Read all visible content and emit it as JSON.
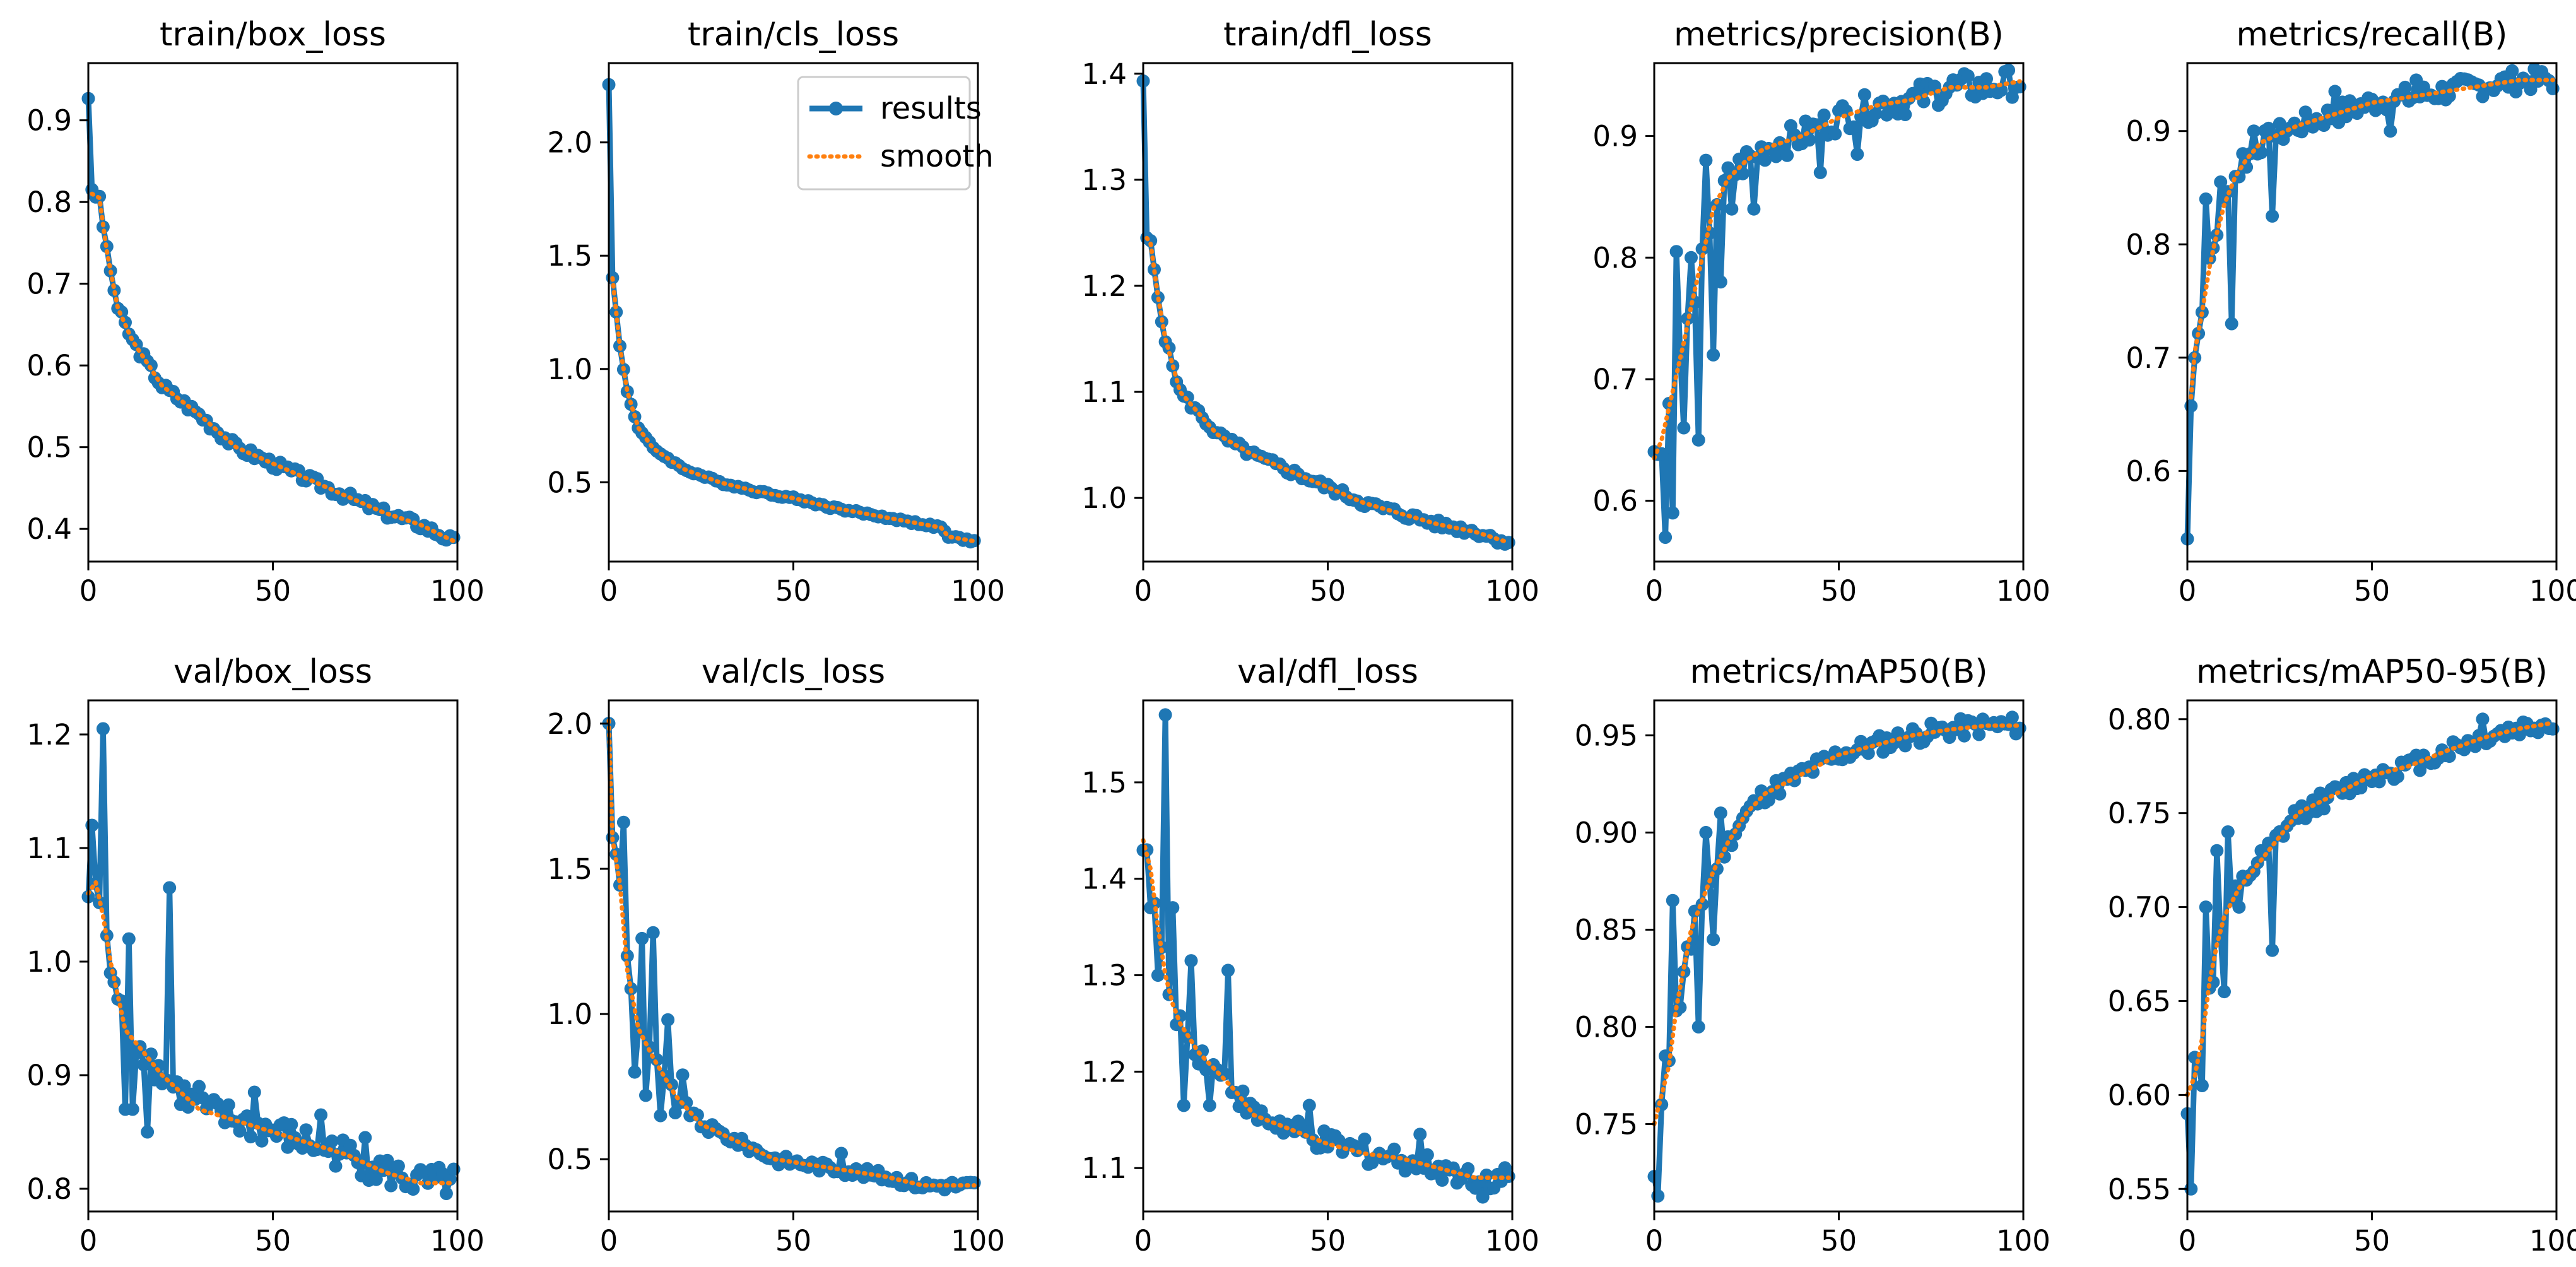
{
  "legend": {
    "results_label": "results",
    "smooth_label": "smooth"
  },
  "colors": {
    "results": "#1f77b4",
    "smooth": "#ff7f0e"
  },
  "chart_data": [
    {
      "type": "line",
      "title": "train/box_loss",
      "xlim": [
        0,
        100
      ],
      "ylim": [
        0.36,
        0.97
      ],
      "xticks": [
        "0",
        "50",
        "100"
      ],
      "yticks": [
        0.4,
        0.5,
        0.6,
        0.7,
        0.8,
        0.9
      ],
      "ytick_labels": [
        "0.4",
        "0.5",
        "0.6",
        "0.7",
        "0.8",
        "0.9"
      ],
      "n_points": 100,
      "anchors": [
        [
          0,
          0.93
        ],
        [
          1,
          0.81
        ],
        [
          3,
          0.805
        ],
        [
          5,
          0.74
        ],
        [
          8,
          0.67
        ],
        [
          12,
          0.63
        ],
        [
          20,
          0.575
        ],
        [
          30,
          0.54
        ],
        [
          40,
          0.5
        ],
        [
          50,
          0.48
        ],
        [
          60,
          0.46
        ],
        [
          70,
          0.44
        ],
        [
          80,
          0.42
        ],
        [
          90,
          0.405
        ],
        [
          99,
          0.385
        ]
      ],
      "noise": 0.006,
      "outliers": [],
      "smooth": "fit",
      "smooth_start": 1,
      "legend": false
    },
    {
      "type": "line",
      "title": "train/cls_loss",
      "xlim": [
        0,
        100
      ],
      "ylim": [
        0.15,
        2.35
      ],
      "xticks": [
        "0",
        "50",
        "100"
      ],
      "yticks": [
        0.5,
        1.0,
        1.5,
        2.0
      ],
      "ytick_labels": [
        "0.5",
        "1.0",
        "1.5",
        "2.0"
      ],
      "n_points": 100,
      "anchors": [
        [
          0,
          2.26
        ],
        [
          1,
          1.4
        ],
        [
          2,
          1.25
        ],
        [
          3,
          1.1
        ],
        [
          5,
          0.9
        ],
        [
          8,
          0.74
        ],
        [
          12,
          0.65
        ],
        [
          20,
          0.56
        ],
        [
          30,
          0.5
        ],
        [
          40,
          0.46
        ],
        [
          50,
          0.43
        ],
        [
          60,
          0.39
        ],
        [
          70,
          0.36
        ],
        [
          80,
          0.33
        ],
        [
          90,
          0.3
        ],
        [
          92,
          0.26
        ],
        [
          99,
          0.24
        ]
      ],
      "noise": 0.006,
      "outliers": [],
      "smooth": "fit",
      "smooth_start": 1,
      "legend": true
    },
    {
      "type": "line",
      "title": "train/dfl_loss",
      "xlim": [
        0,
        100
      ],
      "ylim": [
        0.94,
        1.41
      ],
      "xticks": [
        "0",
        "50",
        "100"
      ],
      "yticks": [
        1.0,
        1.1,
        1.2,
        1.3,
        1.4
      ],
      "ytick_labels": [
        "1.0",
        "1.1",
        "1.2",
        "1.3",
        "1.4"
      ],
      "n_points": 100,
      "anchors": [
        [
          0,
          1.39
        ],
        [
          1,
          1.245
        ],
        [
          2,
          1.24
        ],
        [
          4,
          1.19
        ],
        [
          6,
          1.15
        ],
        [
          10,
          1.1
        ],
        [
          15,
          1.08
        ],
        [
          20,
          1.06
        ],
        [
          30,
          1.04
        ],
        [
          40,
          1.025
        ],
        [
          50,
          1.01
        ],
        [
          60,
          0.995
        ],
        [
          70,
          0.985
        ],
        [
          80,
          0.975
        ],
        [
          90,
          0.968
        ],
        [
          99,
          0.958
        ]
      ],
      "noise": 0.004,
      "outliers": [],
      "smooth": "fit",
      "smooth_start": 1,
      "legend": false
    },
    {
      "type": "line",
      "title": "metrics/precision(B)",
      "xlim": [
        0,
        100
      ],
      "ylim": [
        0.55,
        0.96
      ],
      "xticks": [
        "0",
        "50",
        "100"
      ],
      "yticks": [
        0.6,
        0.7,
        0.8,
        0.9
      ],
      "ytick_labels": [
        "0.6",
        "0.7",
        "0.8",
        "0.9"
      ],
      "n_points": 100,
      "anchors": [
        [
          0,
          0.635
        ],
        [
          2,
          0.65
        ],
        [
          5,
          0.69
        ],
        [
          8,
          0.73
        ],
        [
          10,
          0.76
        ],
        [
          13,
          0.8
        ],
        [
          16,
          0.84
        ],
        [
          20,
          0.865
        ],
        [
          25,
          0.88
        ],
        [
          30,
          0.89
        ],
        [
          40,
          0.9
        ],
        [
          50,
          0.915
        ],
        [
          60,
          0.925
        ],
        [
          70,
          0.93
        ],
        [
          80,
          0.94
        ],
        [
          90,
          0.94
        ],
        [
          99,
          0.945
        ]
      ],
      "noise": 0.012,
      "outliers": [
        [
          3,
          0.57
        ],
        [
          4,
          0.68
        ],
        [
          5,
          0.59
        ],
        [
          6,
          0.805
        ],
        [
          8,
          0.66
        ],
        [
          10,
          0.8
        ],
        [
          12,
          0.65
        ],
        [
          14,
          0.88
        ],
        [
          16,
          0.72
        ],
        [
          18,
          0.78
        ],
        [
          21,
          0.84
        ],
        [
          27,
          0.84
        ],
        [
          45,
          0.87
        ],
        [
          55,
          0.885
        ]
      ],
      "smooth": "fit",
      "smooth_start": 0,
      "legend": false
    },
    {
      "type": "line",
      "title": "metrics/recall(B)",
      "xlim": [
        0,
        100
      ],
      "ylim": [
        0.52,
        0.96
      ],
      "xticks": [
        "0",
        "50",
        "100"
      ],
      "yticks": [
        0.6,
        0.7,
        0.8,
        0.9
      ],
      "ytick_labels": [
        "0.6",
        "0.7",
        "0.8",
        "0.9"
      ],
      "n_points": 100,
      "anchors": [
        [
          0,
          0.54
        ],
        [
          1,
          0.665
        ],
        [
          2,
          0.705
        ],
        [
          4,
          0.74
        ],
        [
          6,
          0.78
        ],
        [
          8,
          0.81
        ],
        [
          10,
          0.835
        ],
        [
          13,
          0.86
        ],
        [
          16,
          0.875
        ],
        [
          20,
          0.89
        ],
        [
          30,
          0.905
        ],
        [
          40,
          0.915
        ],
        [
          50,
          0.925
        ],
        [
          60,
          0.93
        ],
        [
          70,
          0.935
        ],
        [
          80,
          0.94
        ],
        [
          90,
          0.945
        ],
        [
          99,
          0.945
        ]
      ],
      "noise": 0.01,
      "outliers": [
        [
          0,
          0.54
        ],
        [
          5,
          0.84
        ],
        [
          9,
          0.855
        ],
        [
          12,
          0.73
        ],
        [
          15,
          0.88
        ],
        [
          18,
          0.9
        ],
        [
          23,
          0.825
        ],
        [
          27,
          0.9
        ],
        [
          40,
          0.935
        ],
        [
          55,
          0.9
        ],
        [
          62,
          0.945
        ]
      ],
      "smooth": "fit",
      "smooth_start": 1,
      "legend": false
    },
    {
      "type": "line",
      "title": "val/box_loss",
      "xlim": [
        0,
        100
      ],
      "ylim": [
        0.78,
        1.23
      ],
      "xticks": [
        "0",
        "50",
        "100"
      ],
      "yticks": [
        0.8,
        0.9,
        1.0,
        1.1,
        1.2
      ],
      "ytick_labels": [
        "0.8",
        "0.9",
        "1.0",
        "1.1",
        "1.2"
      ],
      "n_points": 100,
      "anchors": [
        [
          0,
          1.06
        ],
        [
          2,
          1.07
        ],
        [
          4,
          1.04
        ],
        [
          6,
          1.0
        ],
        [
          8,
          0.97
        ],
        [
          10,
          0.94
        ],
        [
          15,
          0.92
        ],
        [
          20,
          0.9
        ],
        [
          30,
          0.87
        ],
        [
          40,
          0.86
        ],
        [
          50,
          0.85
        ],
        [
          60,
          0.84
        ],
        [
          70,
          0.83
        ],
        [
          80,
          0.815
        ],
        [
          90,
          0.805
        ],
        [
          99,
          0.805
        ]
      ],
      "noise": 0.014,
      "outliers": [
        [
          1,
          1.12
        ],
        [
          4,
          1.205
        ],
        [
          6,
          0.99
        ],
        [
          10,
          0.87
        ],
        [
          11,
          1.02
        ],
        [
          12,
          0.87
        ],
        [
          16,
          0.85
        ],
        [
          22,
          1.065
        ],
        [
          30,
          0.89
        ],
        [
          45,
          0.885
        ],
        [
          63,
          0.865
        ],
        [
          75,
          0.845
        ]
      ],
      "smooth": "fit",
      "smooth_start": 0,
      "legend": false
    },
    {
      "type": "line",
      "title": "val/cls_loss",
      "xlim": [
        0,
        100
      ],
      "ylim": [
        0.32,
        2.08
      ],
      "xticks": [
        "0",
        "50",
        "100"
      ],
      "yticks": [
        0.5,
        1.0,
        1.5,
        2.0
      ],
      "ytick_labels": [
        "0.5",
        "1.0",
        "1.5",
        "2.0"
      ],
      "n_points": 100,
      "anchors": [
        [
          0,
          2.01
        ],
        [
          1,
          1.6
        ],
        [
          3,
          1.45
        ],
        [
          5,
          1.15
        ],
        [
          8,
          0.95
        ],
        [
          12,
          0.85
        ],
        [
          18,
          0.72
        ],
        [
          25,
          0.62
        ],
        [
          35,
          0.56
        ],
        [
          45,
          0.5
        ],
        [
          55,
          0.48
        ],
        [
          65,
          0.46
        ],
        [
          75,
          0.44
        ],
        [
          85,
          0.41
        ],
        [
          99,
          0.41
        ]
      ],
      "noise": 0.018,
      "outliers": [
        [
          2,
          1.55
        ],
        [
          4,
          1.66
        ],
        [
          5,
          1.2
        ],
        [
          7,
          0.8
        ],
        [
          9,
          1.26
        ],
        [
          10,
          0.72
        ],
        [
          12,
          1.28
        ],
        [
          14,
          0.65
        ],
        [
          16,
          0.98
        ],
        [
          18,
          0.66
        ],
        [
          20,
          0.79
        ],
        [
          63,
          0.52
        ]
      ],
      "smooth": "fit",
      "smooth_start": 0,
      "legend": false
    },
    {
      "type": "line",
      "title": "val/dfl_loss",
      "xlim": [
        0,
        100
      ],
      "ylim": [
        1.055,
        1.585
      ],
      "xticks": [
        "0",
        "50",
        "100"
      ],
      "yticks": [
        1.1,
        1.2,
        1.3,
        1.4,
        1.5
      ],
      "ytick_labels": [
        "1.1",
        "1.2",
        "1.3",
        "1.4",
        "1.5"
      ],
      "n_points": 100,
      "anchors": [
        [
          0,
          1.44
        ],
        [
          2,
          1.41
        ],
        [
          4,
          1.35
        ],
        [
          6,
          1.3
        ],
        [
          8,
          1.27
        ],
        [
          10,
          1.25
        ],
        [
          15,
          1.22
        ],
        [
          20,
          1.2
        ],
        [
          25,
          1.18
        ],
        [
          30,
          1.155
        ],
        [
          40,
          1.14
        ],
        [
          50,
          1.125
        ],
        [
          60,
          1.115
        ],
        [
          70,
          1.11
        ],
        [
          80,
          1.1
        ],
        [
          90,
          1.09
        ],
        [
          99,
          1.09
        ]
      ],
      "noise": 0.012,
      "outliers": [
        [
          1,
          1.43
        ],
        [
          2,
          1.37
        ],
        [
          4,
          1.3
        ],
        [
          6,
          1.57
        ],
        [
          7,
          1.28
        ],
        [
          8,
          1.37
        ],
        [
          11,
          1.165
        ],
        [
          13,
          1.315
        ],
        [
          18,
          1.165
        ],
        [
          23,
          1.305
        ],
        [
          45,
          1.165
        ],
        [
          60,
          1.13
        ],
        [
          75,
          1.135
        ],
        [
          92,
          1.07
        ]
      ],
      "smooth": "fit",
      "smooth_start": 0,
      "legend": false
    },
    {
      "type": "line",
      "title": "metrics/mAP50(B)",
      "xlim": [
        0,
        100
      ],
      "ylim": [
        0.705,
        0.968
      ],
      "xticks": [
        "0",
        "50",
        "100"
      ],
      "yticks": [
        0.75,
        0.8,
        0.85,
        0.9,
        0.95
      ],
      "ytick_labels": [
        "0.75",
        "0.80",
        "0.85",
        "0.90",
        "0.95"
      ],
      "n_points": 100,
      "anchors": [
        [
          0,
          0.75
        ],
        [
          2,
          0.765
        ],
        [
          4,
          0.78
        ],
        [
          6,
          0.81
        ],
        [
          8,
          0.83
        ],
        [
          10,
          0.85
        ],
        [
          13,
          0.865
        ],
        [
          16,
          0.88
        ],
        [
          20,
          0.895
        ],
        [
          25,
          0.91
        ],
        [
          30,
          0.92
        ],
        [
          40,
          0.93
        ],
        [
          50,
          0.94
        ],
        [
          60,
          0.945
        ],
        [
          70,
          0.95
        ],
        [
          80,
          0.953
        ],
        [
          90,
          0.955
        ],
        [
          99,
          0.955
        ]
      ],
      "noise": 0.005,
      "outliers": [
        [
          0,
          0.723
        ],
        [
          1,
          0.713
        ],
        [
          2,
          0.76
        ],
        [
          3,
          0.785
        ],
        [
          5,
          0.865
        ],
        [
          7,
          0.81
        ],
        [
          10,
          0.84
        ],
        [
          12,
          0.8
        ],
        [
          14,
          0.9
        ],
        [
          16,
          0.845
        ],
        [
          18,
          0.91
        ]
      ],
      "smooth": "fit",
      "smooth_start": 0,
      "legend": false
    },
    {
      "type": "line",
      "title": "metrics/mAP50-95(B)",
      "xlim": [
        0,
        100
      ],
      "ylim": [
        0.538,
        0.81
      ],
      "xticks": [
        "0",
        "50",
        "100"
      ],
      "yticks": [
        0.55,
        0.6,
        0.65,
        0.7,
        0.75,
        0.8
      ],
      "ytick_labels": [
        "0.55",
        "0.60",
        "0.65",
        "0.70",
        "0.75",
        "0.80"
      ],
      "n_points": 100,
      "anchors": [
        [
          0,
          0.6
        ],
        [
          2,
          0.61
        ],
        [
          4,
          0.63
        ],
        [
          6,
          0.66
        ],
        [
          8,
          0.68
        ],
        [
          10,
          0.695
        ],
        [
          14,
          0.71
        ],
        [
          18,
          0.72
        ],
        [
          24,
          0.735
        ],
        [
          30,
          0.75
        ],
        [
          40,
          0.76
        ],
        [
          50,
          0.77
        ],
        [
          60,
          0.775
        ],
        [
          70,
          0.783
        ],
        [
          80,
          0.79
        ],
        [
          90,
          0.795
        ],
        [
          99,
          0.798
        ]
      ],
      "noise": 0.005,
      "outliers": [
        [
          0,
          0.59
        ],
        [
          1,
          0.55
        ],
        [
          2,
          0.62
        ],
        [
          4,
          0.605
        ],
        [
          5,
          0.7
        ],
        [
          7,
          0.66
        ],
        [
          8,
          0.73
        ],
        [
          10,
          0.655
        ],
        [
          11,
          0.74
        ],
        [
          14,
          0.7
        ],
        [
          20,
          0.73
        ],
        [
          23,
          0.677
        ],
        [
          80,
          0.8
        ]
      ],
      "smooth": "fit",
      "smooth_start": 0,
      "legend": false
    }
  ]
}
